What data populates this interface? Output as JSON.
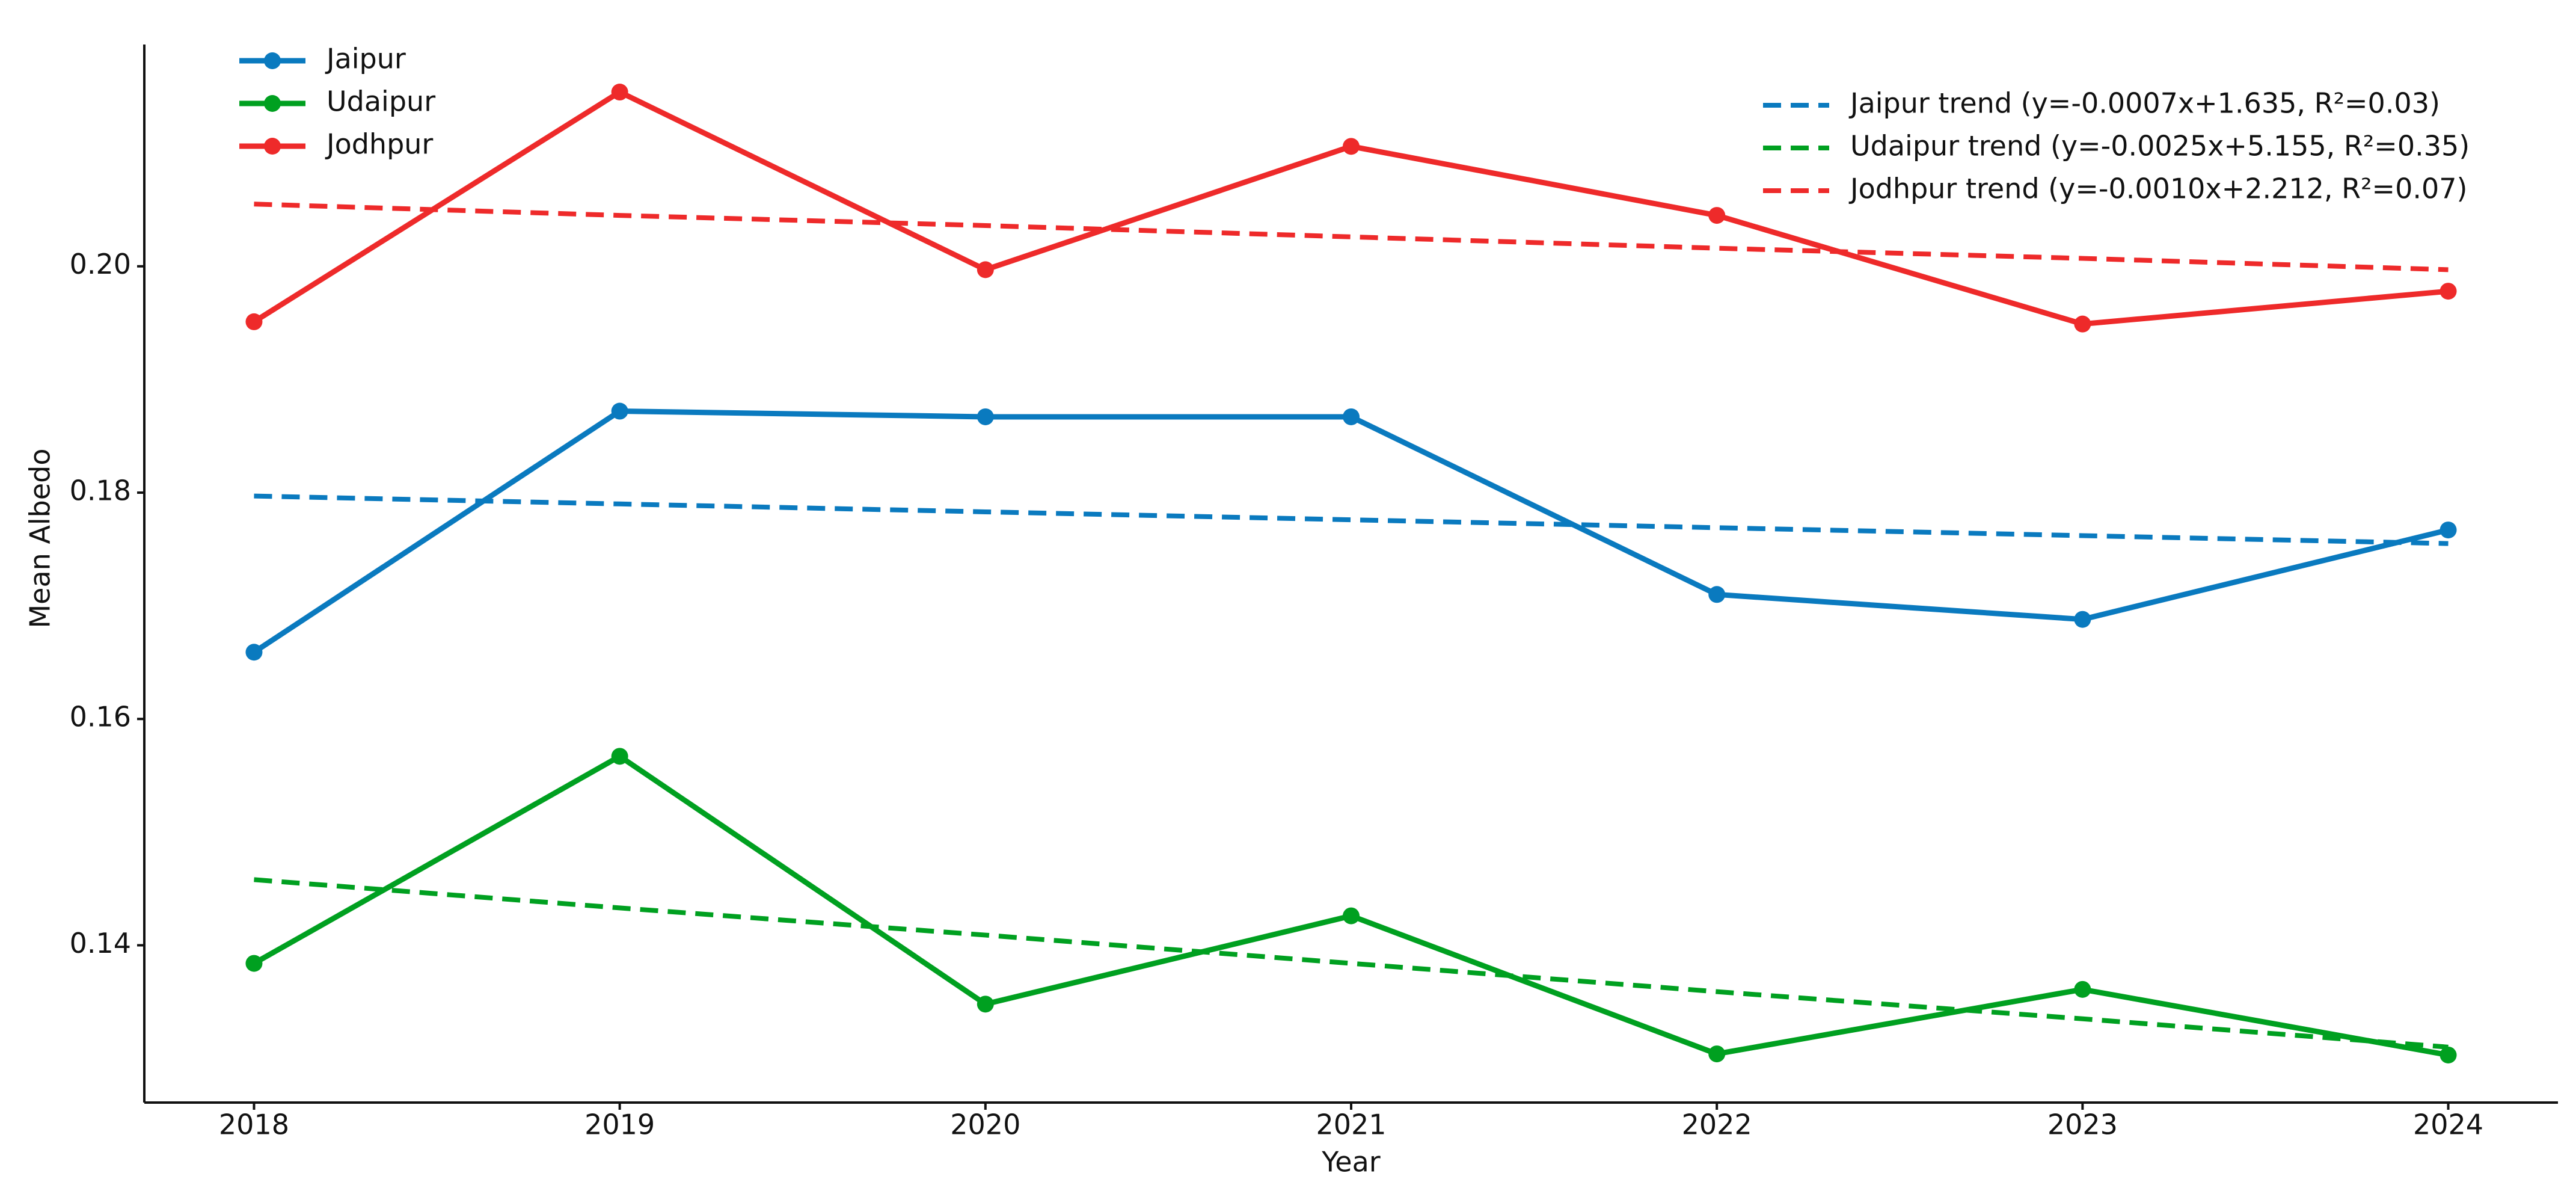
{
  "chart_data": {
    "type": "line",
    "x_label": "Year",
    "y_label": "Mean Albedo",
    "x": [
      2018,
      2019,
      2020,
      2021,
      2022,
      2023,
      2024
    ],
    "xlim": [
      2017.7,
      2024.3
    ],
    "xticks": [
      2018,
      2019,
      2020,
      2021,
      2022,
      2023,
      2024
    ],
    "ylim": [
      0.1261,
      0.2196
    ],
    "yticks": [
      0.14,
      0.16,
      0.18,
      {
        "value": 0.2,
        "label": "0.20"
      }
    ],
    "grid": false,
    "legend_loc": "upper left",
    "trend_legend_loc": "upper right",
    "series": [
      {
        "name": "Jaipur",
        "color": "#0a7abf",
        "dashed": false,
        "markers": true,
        "values": [
          0.1659,
          0.1872,
          0.1867,
          0.1867,
          0.171,
          0.1688,
          0.1767
        ]
      },
      {
        "name": "Udaipur",
        "color": "#00a020",
        "dashed": false,
        "markers": true,
        "values": [
          0.1384,
          0.1567,
          0.1348,
          0.1426,
          0.1304,
          0.1361,
          0.1303
        ]
      },
      {
        "name": "Jodhpur",
        "color": "#ee2a2a",
        "dashed": false,
        "markers": true,
        "values": [
          0.1951,
          0.2154,
          0.1997,
          0.2106,
          0.2045,
          0.1949,
          0.1978
        ]
      },
      {
        "name": "Jaipur trend (y=-0.0007x+1.635, R²=0.03)",
        "color": "#0a7abf",
        "dashed": true,
        "markers": false,
        "values": [
          0.1797,
          0.179,
          0.1783,
          0.1776,
          0.1769,
          0.1762,
          0.1755
        ]
      },
      {
        "name": "Udaipur trend (y=-0.0025x+5.155, R²=0.35)",
        "color": "#00a020",
        "dashed": true,
        "markers": false,
        "values": [
          0.1458,
          0.1433,
          0.1409,
          0.1384,
          0.1359,
          0.1335,
          0.131
        ]
      },
      {
        "name": "Jodhpur trend (y=-0.0010x+2.212, R²=0.07)",
        "color": "#ee2a2a",
        "dashed": true,
        "markers": false,
        "values": [
          0.2055,
          0.2045,
          0.2036,
          0.2026,
          0.2016,
          0.2007,
          0.1997
        ]
      }
    ]
  }
}
